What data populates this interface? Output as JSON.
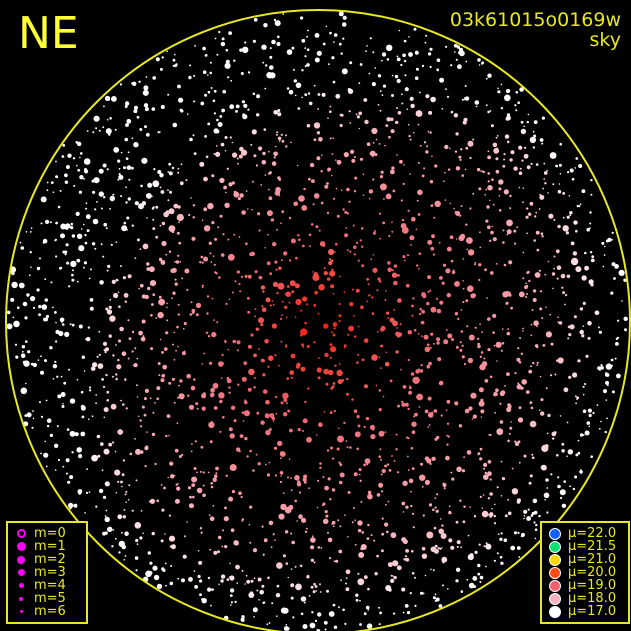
{
  "direction_label": "NE",
  "title": {
    "id": "03k61015o0169w",
    "mode": "sky"
  },
  "colors": {
    "frame": "#e8e820",
    "magnitude_symbol": "#ff00ff"
  },
  "magnitude_legend": [
    {
      "label": "m=0",
      "size": 9,
      "hollow": true
    },
    {
      "label": "m=1",
      "size": 9
    },
    {
      "label": "m=2",
      "size": 8
    },
    {
      "label": "m=3",
      "size": 7
    },
    {
      "label": "m=4",
      "size": 5
    },
    {
      "label": "m=5",
      "size": 4
    },
    {
      "label": "m=6",
      "size": 3
    }
  ],
  "brightness_legend": [
    {
      "label": "μ=22.0",
      "color": "#1060ff"
    },
    {
      "label": "μ=21.5",
      "color": "#10e070"
    },
    {
      "label": "μ=21.0",
      "color": "#ffd800"
    },
    {
      "label": "μ=20.0",
      "color": "#ff4a10"
    },
    {
      "label": "μ=19.0",
      "color": "#f06070"
    },
    {
      "label": "μ=18.0",
      "color": "#f8b0c0"
    },
    {
      "label": "μ=17.0",
      "color": "#ffffff"
    }
  ]
}
